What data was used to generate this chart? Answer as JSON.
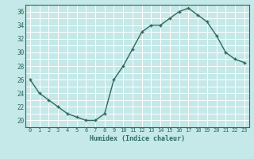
{
  "xlabel": "Humidex (Indice chaleur)",
  "x": [
    0,
    1,
    2,
    3,
    4,
    5,
    6,
    7,
    8,
    9,
    10,
    11,
    12,
    13,
    14,
    15,
    16,
    17,
    18,
    19,
    20,
    21,
    22,
    23
  ],
  "y": [
    26,
    24,
    23,
    22,
    21,
    20.5,
    20,
    20,
    21,
    26,
    28,
    30.5,
    33,
    34,
    34,
    35,
    36,
    36.5,
    35.5,
    34.5,
    32.5,
    30,
    29,
    28.5
  ],
  "line_color": "#2d6b5e",
  "marker": "+",
  "bg_color": "#c5e8e8",
  "grid_color": "#ffffff",
  "tick_color": "#2d6b5e",
  "ylim": [
    19,
    37
  ],
  "yticks": [
    20,
    22,
    24,
    26,
    28,
    30,
    32,
    34,
    36
  ],
  "xlim": [
    -0.5,
    23.5
  ],
  "xticks": [
    0,
    1,
    2,
    3,
    4,
    5,
    6,
    7,
    8,
    9,
    10,
    11,
    12,
    13,
    14,
    15,
    16,
    17,
    18,
    19,
    20,
    21,
    22,
    23
  ]
}
